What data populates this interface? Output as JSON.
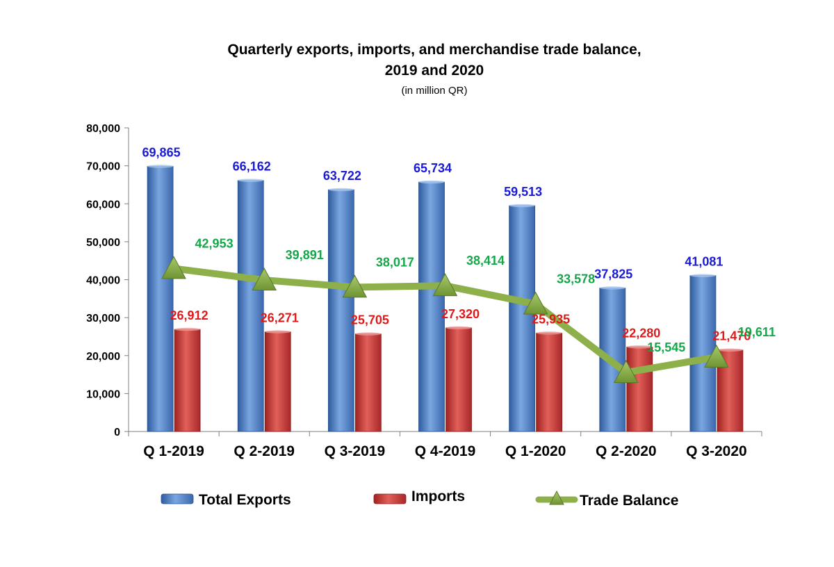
{
  "chart_data": {
    "type": "bar",
    "title_line1": "Quarterly exports, imports, and merchandise trade balance,",
    "title_line2": "2019 and 2020",
    "subtitle": "(in million QR)",
    "categories": [
      "Q 1-2019",
      "Q 2-2019",
      "Q 3-2019",
      "Q 4-2019",
      "Q 1-2020",
      "Q 2-2020",
      "Q 3-2020"
    ],
    "ylim": [
      0,
      80000
    ],
    "yticks": [
      0,
      10000,
      20000,
      30000,
      40000,
      50000,
      60000,
      70000,
      80000
    ],
    "ytick_labels": [
      "0",
      "10,000",
      "20,000",
      "30,000",
      "40,000",
      "50,000",
      "60,000",
      "70,000",
      "80,000"
    ],
    "grid": false,
    "legend_position": "bottom",
    "series": [
      {
        "name": "Total Exports",
        "kind": "bar",
        "color": "#4a7cc4",
        "label_color": "#1a1ad6",
        "values": [
          69865,
          66162,
          63722,
          65734,
          59513,
          37825,
          41081
        ],
        "labels": [
          "69,865",
          "66,162",
          "63,722",
          "65,734",
          "59,513",
          "37,825",
          "41,081"
        ]
      },
      {
        "name": "Imports",
        "kind": "bar",
        "color": "#c9302c",
        "label_color": "#e01a1a",
        "values": [
          26912,
          26271,
          25705,
          27320,
          25935,
          22280,
          21470
        ],
        "labels": [
          "26,912",
          "26,271",
          "25,705",
          "27,320",
          "25,935",
          "22,280",
          "21,470"
        ]
      },
      {
        "name": "Trade Balance",
        "kind": "line",
        "color": "#8db04a",
        "marker_color": "#8db04a",
        "label_color": "#14a84a",
        "values": [
          42953,
          39891,
          38017,
          38414,
          33578,
          15545,
          19611
        ],
        "labels": [
          "42,953",
          "39,891",
          "38,017",
          "38,414",
          "33,578",
          "15,545",
          "19,611"
        ]
      }
    ]
  }
}
